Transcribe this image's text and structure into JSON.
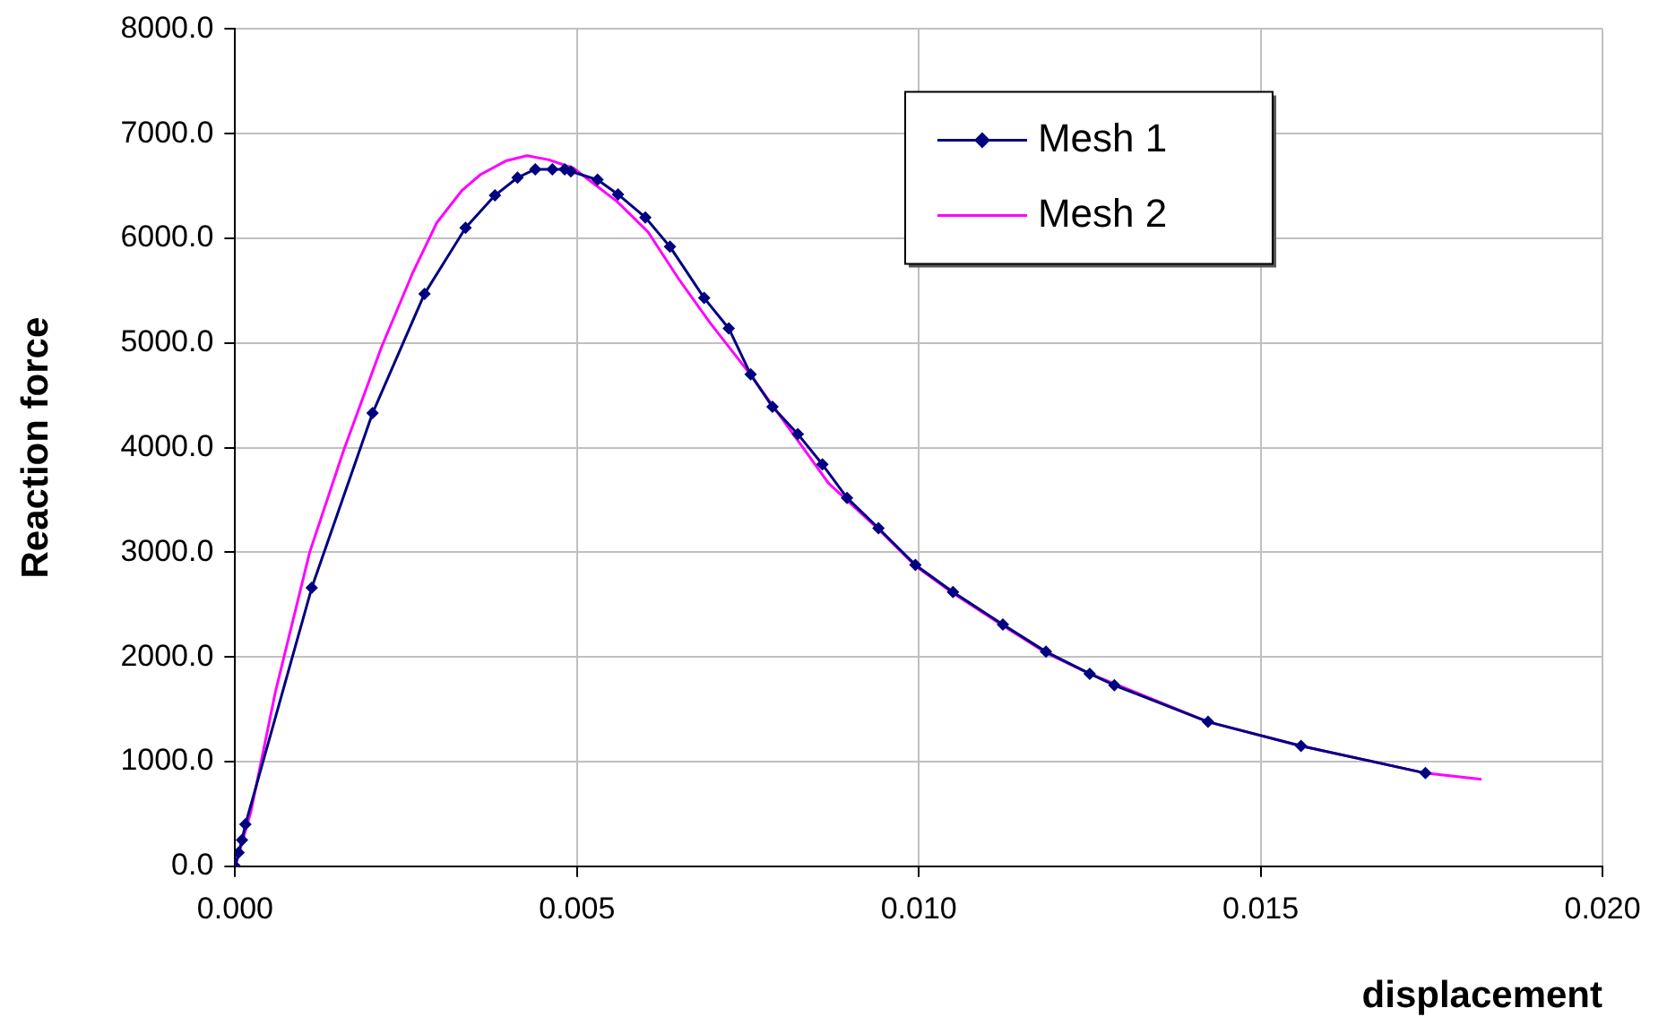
{
  "chart_data": {
    "type": "line",
    "xlabel": "displacement",
    "ylabel": "Reaction force",
    "xlim": [
      0,
      0.02
    ],
    "xticks": [
      {
        "value": 0,
        "label": "0.000"
      },
      {
        "value": 0.005,
        "label": "0.005"
      },
      {
        "value": 0.01,
        "label": "0.010"
      },
      {
        "value": 0.015,
        "label": "0.015"
      },
      {
        "value": 0.02,
        "label": "0.020"
      }
    ],
    "ylim": [
      0,
      8000
    ],
    "yticks": [
      {
        "value": 0,
        "label": "0.0"
      },
      {
        "value": 1000,
        "label": "1000.0"
      },
      {
        "value": 2000,
        "label": "2000.0"
      },
      {
        "value": 3000,
        "label": "3000.0"
      },
      {
        "value": 4000,
        "label": "4000.0"
      },
      {
        "value": 5000,
        "label": "5000.0"
      },
      {
        "value": 6000,
        "label": "6000.0"
      },
      {
        "value": 7000,
        "label": "7000.0"
      },
      {
        "value": 8000,
        "label": "8000.0"
      }
    ],
    "grid": true,
    "legend": "top right",
    "series": [
      {
        "name": "Mesh 1",
        "color": "#000080",
        "marker": "diamond",
        "x": [
          0,
          5e-05,
          0.0001,
          0.00015,
          0.00112,
          0.00201,
          0.00277,
          0.00337,
          0.0038,
          0.00413,
          0.00439,
          0.00464,
          0.00482,
          0.00491,
          0.0053,
          0.0056,
          0.006,
          0.00636,
          0.00686,
          0.00722,
          0.00754,
          0.00786,
          0.00823,
          0.00859,
          0.00895,
          0.00941,
          0.00995,
          0.0105,
          0.01123,
          0.01186,
          0.0125,
          0.01286,
          0.01423,
          0.01559,
          0.01741
        ],
        "values": [
          0,
          130,
          250,
          400,
          2660,
          4330,
          5470,
          6100,
          6410,
          6580,
          6660,
          6660,
          6660,
          6640,
          6560,
          6420,
          6200,
          5920,
          5430,
          5140,
          4700,
          4390,
          4130,
          3840,
          3520,
          3230,
          2880,
          2620,
          2310,
          2050,
          1840,
          1730,
          1380,
          1150,
          890
        ]
      },
      {
        "name": "Mesh 2",
        "color": "#ff00ff",
        "marker": "none",
        "x": [
          0,
          0.00023,
          0.00059,
          0.00109,
          0.00159,
          0.00214,
          0.00259,
          0.00295,
          0.00332,
          0.00359,
          0.00396,
          0.00427,
          0.00459,
          0.00495,
          0.00559,
          0.00604,
          0.0065,
          0.00695,
          0.0075,
          0.00814,
          0.00868,
          0.00941,
          0.00995,
          0.0105,
          0.01123,
          0.01186,
          0.0125,
          0.01423,
          0.01559,
          0.01741,
          0.01823
        ],
        "values": [
          0,
          520,
          1670,
          3000,
          3980,
          4960,
          5660,
          6150,
          6460,
          6610,
          6740,
          6790,
          6750,
          6670,
          6350,
          6060,
          5600,
          5190,
          4730,
          4150,
          3660,
          3220,
          2870,
          2610,
          2300,
          2040,
          1840,
          1380,
          1150,
          890,
          830
        ]
      }
    ]
  }
}
